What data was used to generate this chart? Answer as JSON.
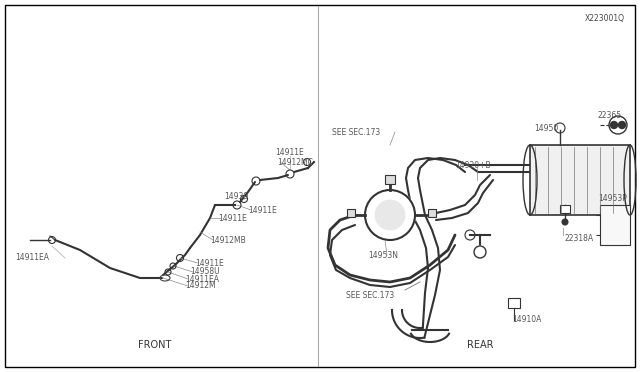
{
  "background_color": "#ffffff",
  "border_color": "#000000",
  "line_color": "#333333",
  "label_color": "#555555",
  "front_label": "FRONT",
  "rear_label": "REAR",
  "diagram_id": "X223001Q",
  "figsize": [
    6.4,
    3.72
  ],
  "dpi": 100
}
